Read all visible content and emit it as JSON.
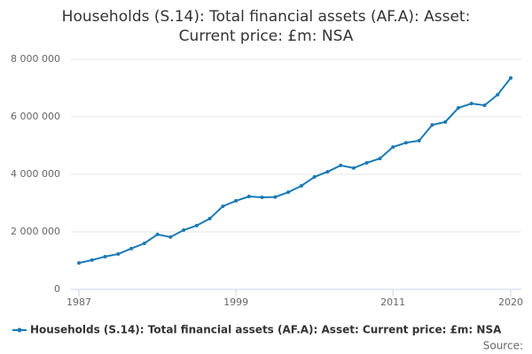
{
  "chart_data": {
    "type": "line",
    "title": "Households (S.14): Total financial assets (AF.A): Asset: Current price: £m: NSA",
    "x": [
      1987,
      1988,
      1989,
      1990,
      1991,
      1992,
      1993,
      1994,
      1995,
      1996,
      1997,
      1998,
      1999,
      2000,
      2001,
      2002,
      2003,
      2004,
      2005,
      2006,
      2007,
      2008,
      2009,
      2010,
      2011,
      2012,
      2013,
      2014,
      2015,
      2016,
      2017,
      2018,
      2019,
      2020
    ],
    "series": [
      {
        "name": "Households (S.14): Total financial assets (AF.A): Asset: Current price: £m: NSA",
        "color": "#1a7ab5",
        "values": [
          920000,
          1020000,
          1140000,
          1230000,
          1420000,
          1600000,
          1910000,
          1820000,
          2060000,
          2220000,
          2460000,
          2890000,
          3080000,
          3230000,
          3200000,
          3210000,
          3380000,
          3600000,
          3910000,
          4090000,
          4310000,
          4220000,
          4400000,
          4550000,
          4950000,
          5100000,
          5170000,
          5720000,
          5820000,
          6310000,
          6460000,
          6400000,
          6770000,
          7350000
        ]
      }
    ],
    "xlim": [
      1987,
      2020
    ],
    "xticks": [
      1987,
      1999,
      2011,
      2020
    ],
    "ylim": [
      0,
      8000000
    ],
    "yticks": [
      0,
      {
        "value": 2000000,
        "label": "2 000 000"
      },
      {
        "value": 4000000,
        "label": "4 000 000"
      },
      {
        "value": 6000000,
        "label": "6 000 000"
      },
      {
        "value": 8000000,
        "label": "8 000 000"
      }
    ],
    "grid": true,
    "legend": "bottom",
    "source": "Source:"
  }
}
